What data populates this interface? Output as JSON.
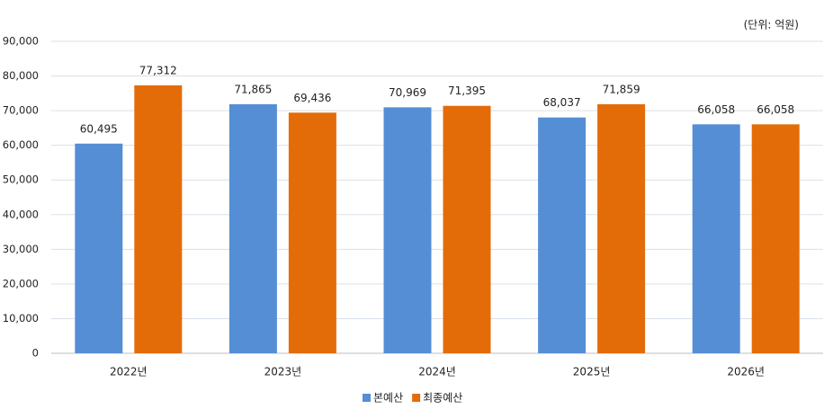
{
  "chart_data": {
    "type": "bar",
    "annotation": "(단위: 억원)",
    "categories": [
      "2022년",
      "2023년",
      "2024년",
      "2025년",
      "2026년"
    ],
    "series": [
      {
        "name": "본예산",
        "color": "#558ed5",
        "values": [
          60495,
          71865,
          70969,
          68037,
          66058
        ],
        "value_labels": [
          "60,495",
          "71,865",
          "70,969",
          "68,037",
          "66,058"
        ]
      },
      {
        "name": "최종예산",
        "color": "#e36c09",
        "values": [
          77312,
          69436,
          71395,
          71859,
          66058
        ],
        "value_labels": [
          "77,312",
          "69,436",
          "71,395",
          "71,859",
          "66,058"
        ]
      }
    ],
    "ylim": [
      0,
      90000
    ],
    "yticks": [
      0,
      {
        "value": 10000,
        "label": "10,000"
      },
      {
        "value": 20000,
        "label": "20,000"
      },
      {
        "value": 30000,
        "label": "30,000"
      },
      {
        "value": 40000,
        "label": "40,000"
      },
      {
        "value": 50000,
        "label": "50,000"
      },
      {
        "value": 60000,
        "label": "60,000"
      },
      {
        "value": 70000,
        "label": "70,000"
      },
      {
        "value": 80000,
        "label": "80,000"
      },
      {
        "value": 90000,
        "label": "90,000"
      }
    ],
    "grid": true,
    "legend": "bottom"
  }
}
